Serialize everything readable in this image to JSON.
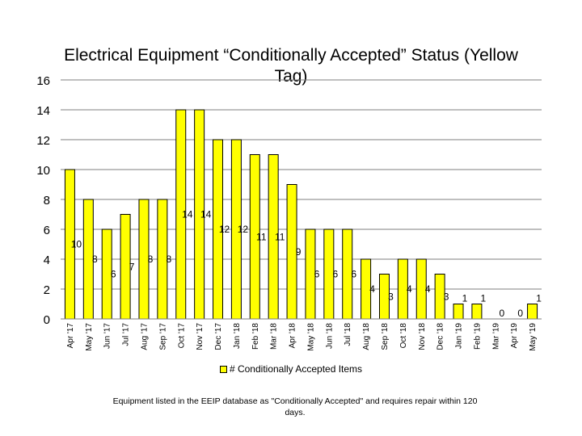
{
  "chart_data": {
    "type": "bar",
    "title": "Electrical Equipment “Conditionally Accepted” Status (Yellow Tag)",
    "categories": [
      "Apr '17",
      "May '17",
      "Jun '17",
      "Jul '17",
      "Aug '17",
      "Sep '17",
      "Oct '17",
      "Nov '17",
      "Dec '17",
      "Jan '18",
      "Feb '18",
      "Mar '18",
      "Apr '18",
      "May '18",
      "Jun '18",
      "Jul '18",
      "Aug '18",
      "Sep '18",
      "Oct '18",
      "Nov '18",
      "Dec '18",
      "Jan '19",
      "Feb '19",
      "Mar '19",
      "Apr '19",
      "May '19"
    ],
    "series": [
      {
        "name": "# Conditionally Accepted Items",
        "values": [
          10,
          8,
          6,
          7,
          8,
          8,
          14,
          14,
          12,
          12,
          11,
          11,
          9,
          6,
          6,
          6,
          4,
          3,
          4,
          4,
          3,
          1,
          1,
          0,
          0,
          1
        ],
        "color": "#ffff00"
      }
    ],
    "ylim": [
      0,
      16
    ],
    "yticks": [
      0,
      2,
      4,
      6,
      8,
      10,
      12,
      14,
      16
    ],
    "grid": true,
    "legend": "bottom",
    "data_labels": true,
    "footnote": "Equipment listed in the EEIP database as \"Conditionally Accepted\" and requires repair within 120 days."
  }
}
